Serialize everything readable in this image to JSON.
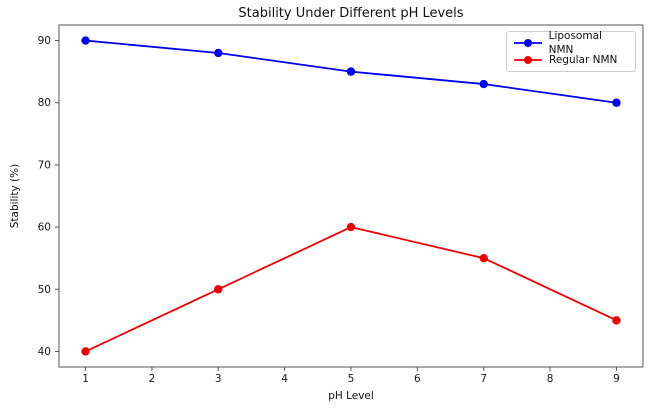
{
  "chart_data": {
    "type": "line",
    "title": "Stability Under Different pH Levels",
    "xlabel": "pH Level",
    "ylabel": "Stability (%)",
    "x": [
      1,
      3,
      5,
      7,
      9
    ],
    "series": [
      {
        "name": "Liposomal NMN",
        "color": "#0000ee",
        "values": [
          90,
          88,
          85,
          83,
          80
        ]
      },
      {
        "name": "Regular NMN",
        "color": "#ee0000",
        "values": [
          40,
          50,
          60,
          55,
          45
        ]
      }
    ],
    "xticks": [
      1,
      2,
      3,
      4,
      5,
      6,
      7,
      8,
      9
    ],
    "yticks": [
      40,
      50,
      60,
      70,
      80,
      90
    ],
    "xlim": [
      0.6,
      9.4
    ],
    "ylim": [
      37.5,
      92.5
    ],
    "grid": false,
    "legend_position": "upper-right",
    "marker": "circle",
    "line_width": 1.8,
    "marker_radius": 4.2,
    "axis_color": "#555555",
    "tick_color": "#1a1a1a"
  }
}
